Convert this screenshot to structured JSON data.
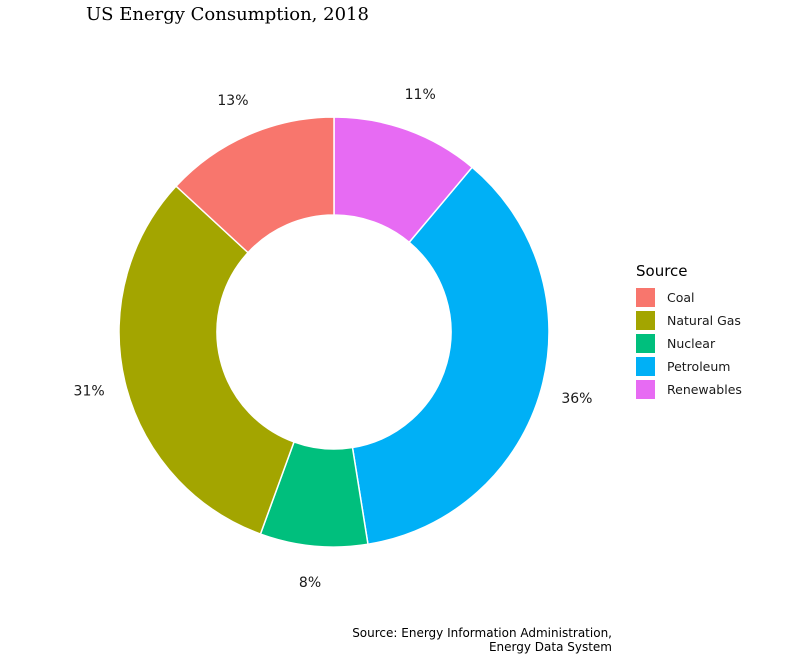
{
  "chart_data": {
    "type": "pie",
    "title": "US Energy Consumption, 2018",
    "legend_title": "Source",
    "legend_position": "right",
    "hole": true,
    "slices": [
      {
        "label": "Coal",
        "value": 13,
        "text": "13%",
        "color": "#F8766D"
      },
      {
        "label": "Natural Gas",
        "value": 31,
        "text": "31%",
        "color": "#A3A500"
      },
      {
        "label": "Nuclear",
        "value": 8,
        "text": "8%",
        "color": "#00BF7D"
      },
      {
        "label": "Petroleum",
        "value": 36,
        "text": "36%",
        "color": "#00B0F6"
      },
      {
        "label": "Renewables",
        "value": 11,
        "text": "11%",
        "color": "#E76BF3"
      }
    ]
  },
  "caption": {
    "line1": "Source: Energy Information Administration,",
    "line2": "Energy Data System"
  }
}
